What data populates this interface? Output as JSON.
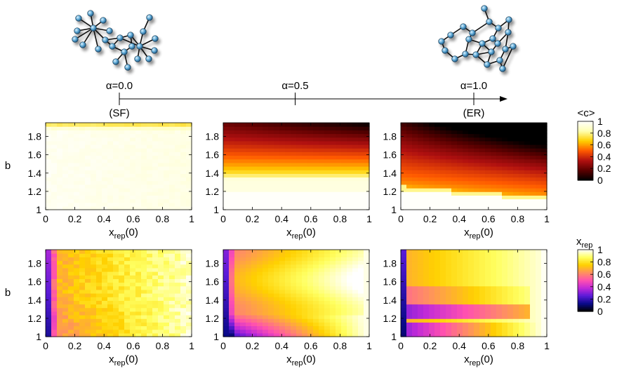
{
  "chart_data": {
    "type": "heatmap",
    "alpha_axis": {
      "ticks": [
        {
          "value": 0.0,
          "label": "α=0.0",
          "sublabel": "(SF)"
        },
        {
          "value": 0.5,
          "label": "α=0.5",
          "sublabel": ""
        },
        {
          "value": 1.0,
          "label": "α=1.0",
          "sublabel": "(ER)"
        }
      ]
    },
    "x_axis": {
      "label_main": "x",
      "label_sub": "rep",
      "label_suffix": "(0)",
      "range": [
        0,
        1
      ],
      "ticks": [
        "0",
        "0.2",
        "0.4",
        "0.6",
        "0.8",
        "1"
      ]
    },
    "y_axis": {
      "label": "b",
      "range": [
        1,
        1.95
      ],
      "ticks": [
        "1",
        "1.2",
        "1.4",
        "1.6",
        "1.8"
      ]
    },
    "grid": {
      "nx": 26,
      "ny": 24
    },
    "rows": [
      {
        "quantity": "<c>",
        "colorbar_label": "<c>",
        "colormap": [
          "#000000",
          "#5a0000",
          "#b01010",
          "#ff5a00",
          "#ffd000",
          "#ffffb0",
          "#ffffff"
        ],
        "colorbar_ticks": [
          "0",
          "0.2",
          "0.4",
          "0.6",
          "0.8",
          "1"
        ],
        "panels": [
          {
            "alpha": 0.0,
            "model": "sf_c"
          },
          {
            "alpha": 0.5,
            "model": "mid_c"
          },
          {
            "alpha": 1.0,
            "model": "er_c"
          }
        ]
      },
      {
        "quantity": "x_rep",
        "colorbar_label_main": "x",
        "colorbar_label_sub": "rep",
        "colormap": [
          "#000000",
          "#0a0a8a",
          "#5a1ad8",
          "#c02ad8",
          "#ff50b0",
          "#ff9060",
          "#ffd000",
          "#ffff60",
          "#ffffff"
        ],
        "colorbar_ticks": [
          "0",
          "0.2",
          "0.4",
          "0.6",
          "0.8",
          "1"
        ],
        "panels": [
          {
            "alpha": 0.0,
            "model": "sf_x"
          },
          {
            "alpha": 0.5,
            "model": "mid_x"
          },
          {
            "alpha": 1.0,
            "model": "er_x"
          }
        ]
      }
    ]
  }
}
